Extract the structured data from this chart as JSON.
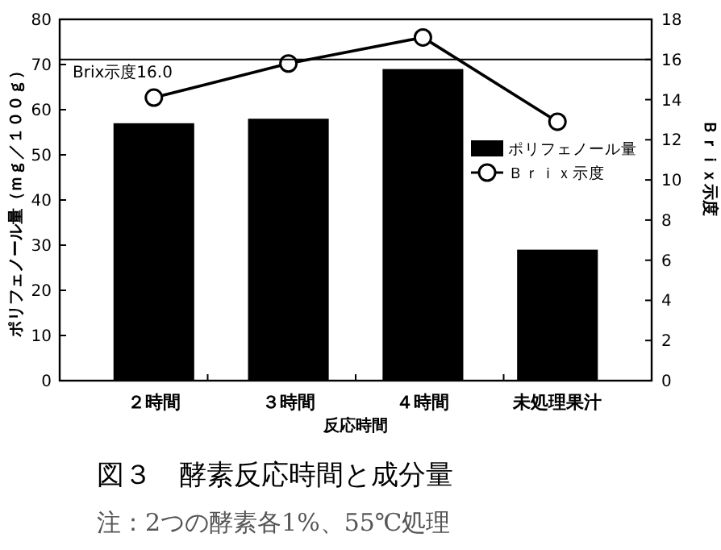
{
  "chart_data": {
    "type": "bar",
    "title": "図３　酵素反応時間と成分量",
    "xlabel": "反応時間",
    "ylabel": "ポリフェノール量（ｍｇ／１００ｇ）",
    "y2label": "Ｂｒｉｘ示度",
    "categories": [
      "２時間",
      "３時間",
      "４時間",
      "未処理果汁"
    ],
    "series": [
      {
        "name": "ポリフェノール量",
        "color": "#000000",
        "values": [
          57,
          58,
          69,
          29
        ]
      },
      {
        "name": "Ｂｒｉｘ示度",
        "type": "line",
        "color": "#000000",
        "axis": "y2",
        "marker": "circle",
        "values": [
          14.1,
          15.8,
          17.1,
          12.9
        ]
      }
    ],
    "ylim": [
      0,
      80
    ],
    "yticks": [
      0,
      10,
      20,
      30,
      40,
      50,
      60,
      70,
      80
    ],
    "y2lim": [
      0,
      18
    ],
    "y2ticks": [
      0,
      2,
      4,
      6,
      8,
      10,
      12,
      14,
      16,
      18
    ],
    "ref_lines": [
      {
        "axis": "y2",
        "value": 16.0,
        "label": "Brix示度16.0"
      }
    ],
    "legend": "right",
    "grid": false,
    "annotations": [
      "注：2つの酵素各1%、55℃処理"
    ]
  }
}
